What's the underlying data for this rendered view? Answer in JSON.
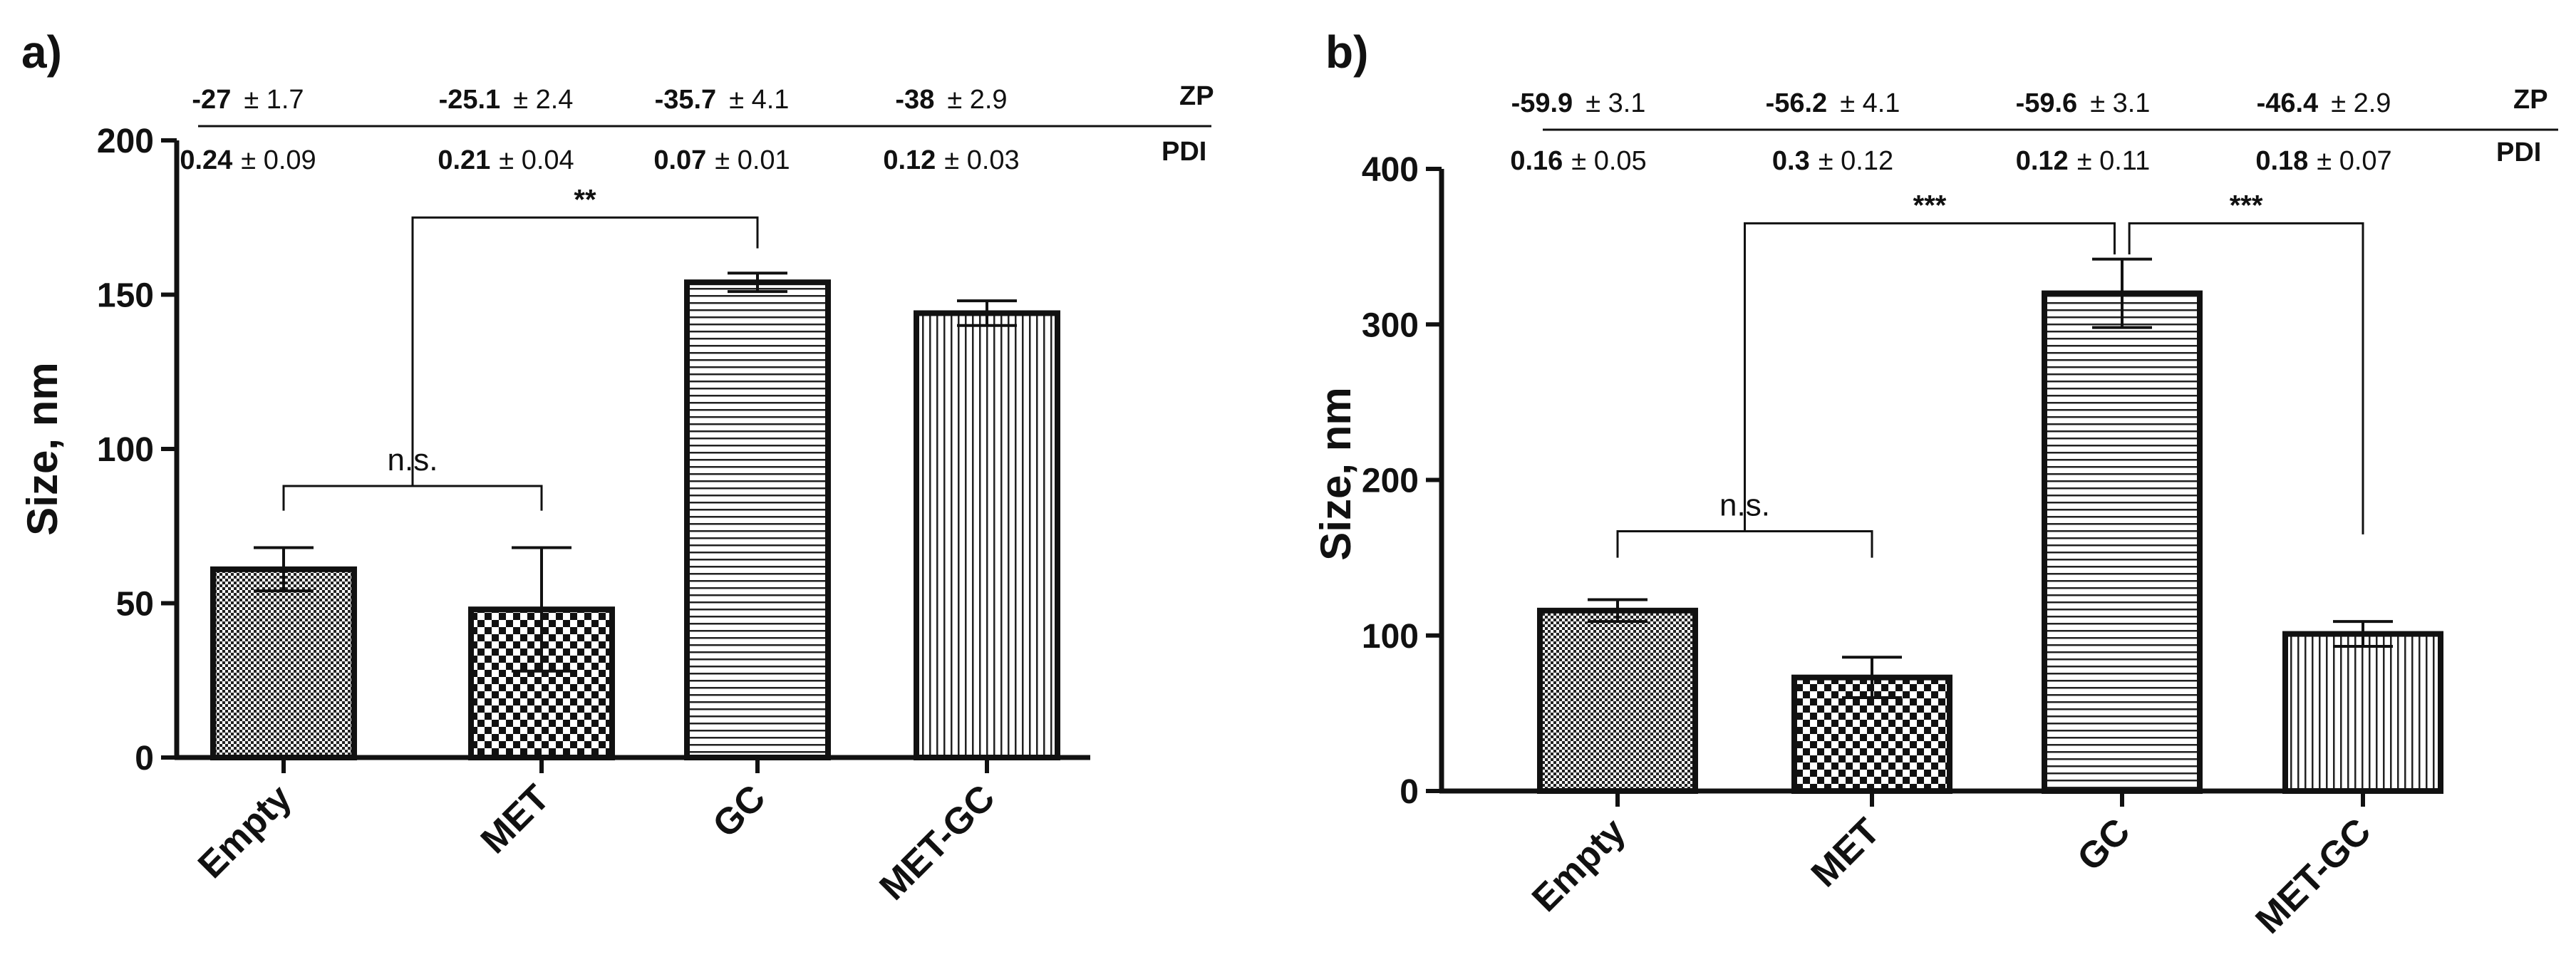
{
  "chart_data": [
    {
      "type": "bar",
      "panel_label": "a)",
      "ylabel": "Size, nm",
      "xlabel": "",
      "ylim": [
        0,
        200
      ],
      "yticks": [
        0,
        50,
        100,
        150,
        200
      ],
      "categories": [
        "Empty",
        "MET",
        "GC",
        "MET-GC"
      ],
      "patterns": [
        "fine-check",
        "checker",
        "horizontal-lines",
        "vertical-lines"
      ],
      "values": [
        61,
        48,
        154,
        144
      ],
      "errors": [
        7,
        20,
        3,
        4
      ],
      "zp_label": "ZP",
      "pdi_label": "PDI",
      "zp": [
        {
          "mean": "-27",
          "sd": "± 1.7"
        },
        {
          "mean": "-25.1",
          "sd": "± 2.4"
        },
        {
          "mean": "-35.7",
          "sd": "± 4.1"
        },
        {
          "mean": "-38",
          "sd": "± 2.9"
        }
      ],
      "pdi": [
        {
          "mean": "0.24",
          "sd": "± 0.09"
        },
        {
          "mean": "0.21",
          "sd": "± 0.04"
        },
        {
          "mean": "0.07",
          "sd": "± 0.01"
        },
        {
          "mean": "0.12",
          "sd": "± 0.03"
        }
      ],
      "significance": [
        {
          "from": 0,
          "to": 1,
          "label": "n.s.",
          "y": 88,
          "drop_from": 80,
          "drop_to": 80
        },
        {
          "from": 0.5,
          "to": 2,
          "label": "**",
          "y": 175,
          "drop_from": 88,
          "drop_to": 165
        }
      ]
    },
    {
      "type": "bar",
      "panel_label": "b)",
      "ylabel": "Size, nm",
      "xlabel": "",
      "ylim": [
        0,
        400
      ],
      "yticks": [
        0,
        100,
        200,
        300,
        400
      ],
      "categories": [
        "Empty",
        "MET",
        "GC",
        "MET-GC"
      ],
      "patterns": [
        "fine-check",
        "checker",
        "horizontal-lines",
        "vertical-lines"
      ],
      "values": [
        116,
        73,
        320,
        101
      ],
      "errors": [
        7,
        13,
        22,
        8
      ],
      "zp_label": "ZP",
      "pdi_label": "PDI",
      "zp": [
        {
          "mean": "-59.9",
          "sd": "± 3.1"
        },
        {
          "mean": "-56.2",
          "sd": "± 4.1"
        },
        {
          "mean": "-59.6",
          "sd": "± 3.1"
        },
        {
          "mean": "-46.4",
          "sd": "± 2.9"
        }
      ],
      "pdi": [
        {
          "mean": "0.16",
          "sd": "± 0.05"
        },
        {
          "mean": "0.3",
          "sd": "± 0.12"
        },
        {
          "mean": "0.12",
          "sd": "± 0.11"
        },
        {
          "mean": "0.18",
          "sd": "± 0.07"
        }
      ],
      "significance": [
        {
          "from": 0,
          "to": 1,
          "label": "n.s.",
          "y": 167,
          "drop_from": 150,
          "drop_to": 150
        },
        {
          "from": 0.5,
          "to": 1.97,
          "label": "***",
          "y": 365,
          "drop_from": 167,
          "drop_to": 345
        },
        {
          "from": 2.03,
          "to": 3,
          "label": "***",
          "y": 365,
          "drop_from": 345,
          "drop_to": 165
        }
      ]
    }
  ]
}
